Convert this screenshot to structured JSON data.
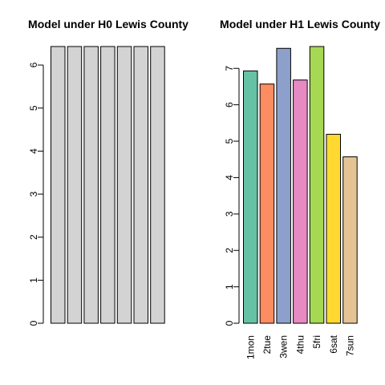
{
  "chart_data": [
    {
      "type": "bar",
      "title": "Model under H0 Lewis County",
      "categories": [
        "",
        "",
        "",
        "",
        "",
        "",
        ""
      ],
      "values": [
        6.43,
        6.43,
        6.43,
        6.43,
        6.43,
        6.43,
        6.43
      ],
      "colors": [
        "#d3d3d3",
        "#d3d3d3",
        "#d3d3d3",
        "#d3d3d3",
        "#d3d3d3",
        "#d3d3d3",
        "#d3d3d3"
      ],
      "yticks": [
        0,
        1,
        2,
        3,
        4,
        5,
        6
      ],
      "ylim": [
        0,
        6.43
      ],
      "grid": false
    },
    {
      "type": "bar",
      "title": "Model under H1 Lewis County",
      "categories": [
        "1mon",
        "2tue",
        "3wen",
        "4thu",
        "5fri",
        "6sat",
        "7sun"
      ],
      "values": [
        6.93,
        6.57,
        7.55,
        6.68,
        7.6,
        5.19,
        4.57
      ],
      "colors": [
        "#66c2a5",
        "#fc8d62",
        "#8da0cb",
        "#e78ac3",
        "#a6d854",
        "#ffd92f",
        "#e5c494"
      ],
      "yticks": [
        0,
        1,
        2,
        3,
        4,
        5,
        6,
        7
      ],
      "ylim": [
        0,
        7.6
      ],
      "grid": false
    }
  ]
}
